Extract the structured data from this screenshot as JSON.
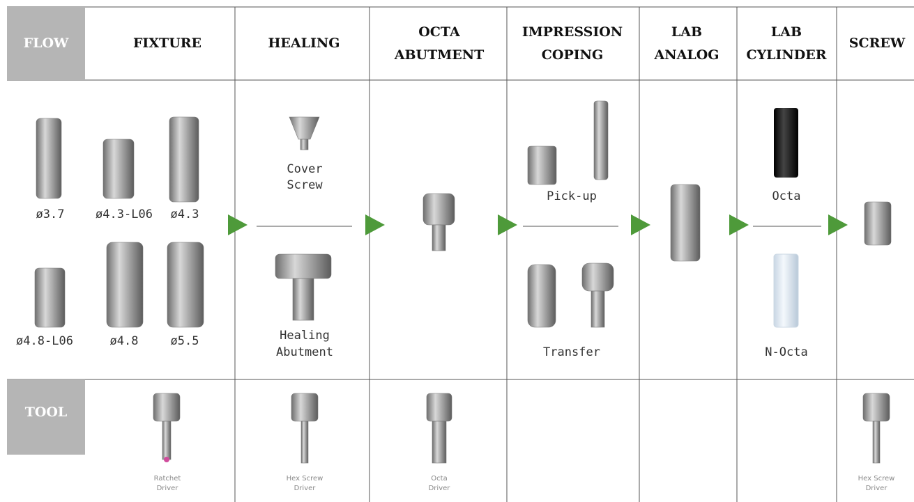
{
  "header": {
    "flow": "FLOW",
    "columns": [
      [
        "FIXTURE"
      ],
      [
        "HEALING"
      ],
      [
        "OCTA",
        "ABUTMENT"
      ],
      [
        "IMPRESSION",
        "COPING"
      ],
      [
        "LAB",
        "ANALOG"
      ],
      [
        "LAB",
        "CYLINDER"
      ],
      [
        "SCREW"
      ]
    ]
  },
  "fixture": {
    "labels": [
      "ø3.7",
      "ø4.3-L06",
      "ø4.3",
      "ø4.8-L06",
      "ø4.8",
      "ø5.5"
    ]
  },
  "healing": {
    "items": [
      [
        "Cover",
        "Screw"
      ],
      [
        "Healing",
        "Abutment"
      ]
    ]
  },
  "impression_coping": {
    "items": [
      "Pick-up",
      "Transfer"
    ]
  },
  "lab_cylinder": {
    "items": [
      "Octa",
      "N-Octa"
    ]
  },
  "tool": {
    "label": "TOOL",
    "items": [
      [
        "Ratchet",
        "Driver"
      ],
      [
        "Hex Screw",
        "Driver"
      ],
      [
        "Octa",
        "Driver"
      ],
      [
        "Hex Screw",
        "Driver"
      ]
    ]
  }
}
